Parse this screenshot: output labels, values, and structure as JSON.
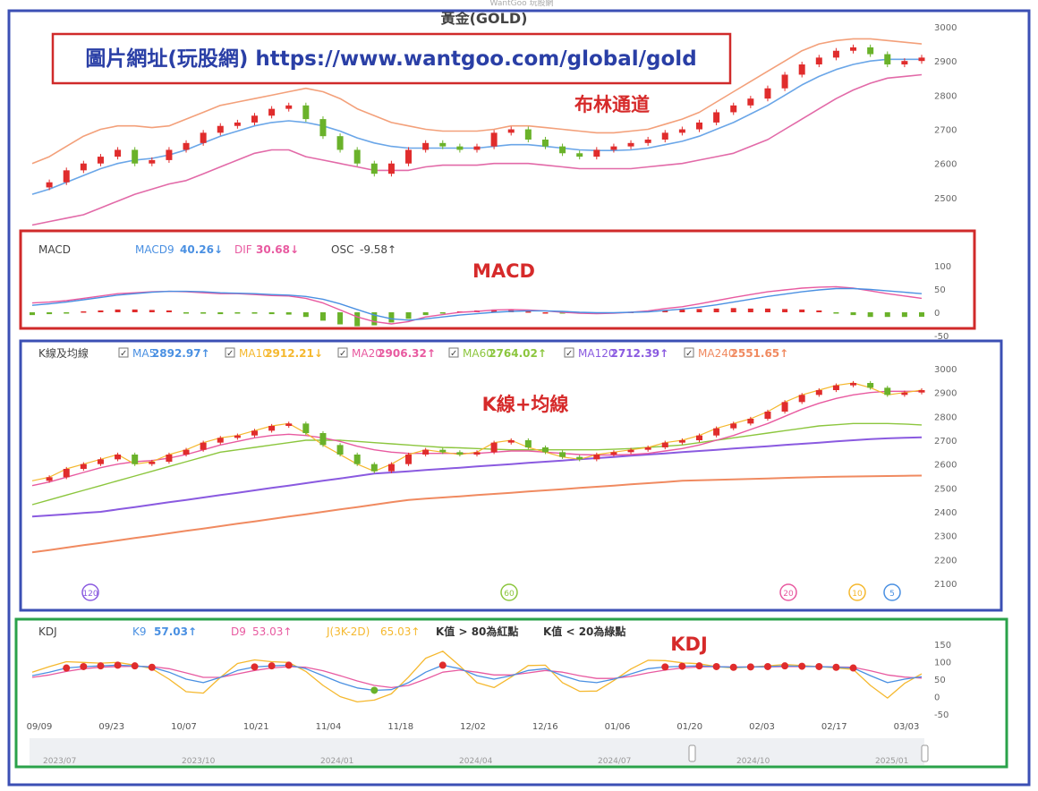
{
  "watermark": "WantGoo 玩股網",
  "title": "黃金(GOLD)",
  "url_box": "圖片網址(玩股網) https://www.wantgoo.com/global/gold",
  "annotations": {
    "bollinger": "布林通道",
    "macd": "MACD",
    "kline": "K線+均線",
    "kdj": "KDJ"
  },
  "colors": {
    "frame_blue": "#3b4fb4",
    "frame_red": "#d02a2a",
    "frame_green": "#2aa24a",
    "up": "#e02c2c",
    "down": "#6ab22a",
    "boll_upper": "#f3a07a",
    "boll_mid": "#6aa6e8",
    "boll_lower": "#e26aa8",
    "ma5": "#4a90e2",
    "ma10": "#f5b82e",
    "ma20": "#e85aa0",
    "ma60": "#8cc63e",
    "ma120": "#8a5ae0",
    "ma240": "#f08a60",
    "annotation": "#d62a2a"
  },
  "chart_data": [
    {
      "type": "line",
      "panel": "bollinger",
      "title": "黃金(GOLD)",
      "ylim": [
        2450,
        3000
      ],
      "y_ticks": [
        3000,
        2900,
        2800,
        2700,
        2600,
        2500
      ],
      "series": [
        {
          "values": [
            2530,
            2545,
            2580,
            2600,
            2620,
            2640,
            2600,
            2610,
            2640,
            2660,
            2690,
            2710,
            2720,
            2740,
            2760,
            2770,
            2730,
            2680,
            2640,
            2600,
            2570,
            2600,
            2640,
            2660,
            2650,
            2640,
            2650,
            2690,
            2700,
            2670,
            2650,
            2630,
            2620,
            2640,
            2650,
            2660,
            2670,
            2690,
            2700,
            2720,
            2750,
            2770,
            2790,
            2820,
            2860,
            2890,
            2910,
            2930,
            2940,
            2920,
            2890,
            2900,
            2910
          ]
        },
        {
          "values": [
            2510,
            2525,
            2545,
            2565,
            2585,
            2600,
            2610,
            2615,
            2625,
            2640,
            2660,
            2680,
            2695,
            2710,
            2720,
            2725,
            2720,
            2710,
            2695,
            2675,
            2660,
            2650,
            2645,
            2645,
            2645,
            2645,
            2645,
            2650,
            2655,
            2655,
            2650,
            2645,
            2640,
            2638,
            2638,
            2640,
            2645,
            2655,
            2665,
            2680,
            2700,
            2720,
            2745,
            2770,
            2800,
            2830,
            2855,
            2875,
            2890,
            2900,
            2905,
            2905,
            2905
          ]
        },
        {
          "values": [
            2600,
            2620,
            2650,
            2680,
            2700,
            2710,
            2710,
            2705,
            2710,
            2730,
            2750,
            2770,
            2780,
            2790,
            2800,
            2810,
            2820,
            2810,
            2790,
            2760,
            2740,
            2720,
            2710,
            2700,
            2695,
            2695,
            2695,
            2700,
            2710,
            2710,
            2705,
            2700,
            2695,
            2690,
            2690,
            2695,
            2700,
            2715,
            2730,
            2750,
            2780,
            2810,
            2840,
            2870,
            2900,
            2930,
            2950,
            2960,
            2965,
            2965,
            2960,
            2955,
            2950
          ]
        },
        {
          "values": [
            2420,
            2430,
            2440,
            2450,
            2470,
            2490,
            2510,
            2525,
            2540,
            2550,
            2570,
            2590,
            2610,
            2630,
            2640,
            2640,
            2620,
            2610,
            2600,
            2590,
            2580,
            2580,
            2580,
            2590,
            2595,
            2595,
            2595,
            2600,
            2600,
            2600,
            2595,
            2590,
            2585,
            2585,
            2585,
            2585,
            2590,
            2595,
            2600,
            2610,
            2620,
            2630,
            2650,
            2670,
            2700,
            2730,
            2760,
            2790,
            2815,
            2835,
            2850,
            2855,
            2860
          ]
        }
      ]
    },
    {
      "type": "bar",
      "panel": "macd",
      "legend_title": "MACD",
      "legend": [
        {
          "name": "MACD9",
          "value": "40.26↓"
        },
        {
          "name": "DIF",
          "value": "30.68↓"
        },
        {
          "name": "OSC",
          "value": "-9.58↑"
        }
      ],
      "ylim": [
        -50,
        100
      ],
      "y_ticks": [
        100,
        50,
        0,
        -50
      ],
      "series": [
        {
          "values": [
            20,
            22,
            25,
            30,
            35,
            40,
            42,
            44,
            45,
            44,
            42,
            40,
            40,
            38,
            36,
            35,
            30,
            20,
            5,
            -10,
            -20,
            -25,
            -20,
            -10,
            -5,
            0,
            2,
            5,
            6,
            5,
            3,
            0,
            -2,
            -3,
            -2,
            0,
            3,
            8,
            12,
            18,
            25,
            32,
            38,
            44,
            48,
            52,
            54,
            55,
            52,
            46,
            40,
            35,
            30
          ]
        },
        {
          "values": [
            15,
            18,
            22,
            27,
            32,
            37,
            40,
            43,
            45,
            45,
            44,
            42,
            41,
            40,
            38,
            37,
            34,
            28,
            18,
            6,
            -6,
            -14,
            -17,
            -14,
            -10,
            -6,
            -3,
            0,
            2,
            3,
            3,
            2,
            0,
            -1,
            -1,
            0,
            1,
            4,
            7,
            11,
            16,
            22,
            28,
            34,
            39,
            44,
            48,
            51,
            51,
            49,
            46,
            43,
            40
          ]
        },
        {
          "values": [
            -6,
            -4,
            -2,
            2,
            4,
            6,
            6,
            5,
            4,
            -2,
            -3,
            -4,
            -2,
            -3,
            -4,
            -5,
            -10,
            -18,
            -26,
            -30,
            -28,
            -22,
            -14,
            -6,
            -2,
            2,
            4,
            6,
            5,
            2,
            0,
            -2,
            -3,
            -2,
            -1,
            1,
            3,
            5,
            6,
            7,
            8,
            9,
            8,
            8,
            7,
            6,
            4,
            -2,
            -6,
            -10,
            -10,
            -10,
            -9.58
          ]
        }
      ]
    },
    {
      "type": "line",
      "panel": "kline",
      "legend_title": "K線及均線",
      "legend": [
        {
          "name": "MA5",
          "value": "2892.97↑"
        },
        {
          "name": "MA10",
          "value": "2912.21↓"
        },
        {
          "name": "MA20",
          "value": "2906.32↑"
        },
        {
          "name": "MA60",
          "value": "2764.02↑"
        },
        {
          "name": "MA120",
          "value": "2712.39↑"
        },
        {
          "name": "MA240",
          "value": "2551.65↑"
        }
      ],
      "ylim": [
        2100,
        3000
      ],
      "y_ticks": [
        3000,
        2900,
        2800,
        2700,
        2600,
        2500,
        2400,
        2300,
        2200,
        2100
      ],
      "markers": [
        "120",
        "60",
        "20",
        "10",
        "5"
      ],
      "series": [
        {
          "name": "MA60",
          "values": [
            2430,
            2450,
            2470,
            2490,
            2510,
            2530,
            2550,
            2570,
            2590,
            2610,
            2630,
            2650,
            2660,
            2670,
            2680,
            2690,
            2700,
            2700,
            2700,
            2695,
            2690,
            2685,
            2680,
            2675,
            2670,
            2668,
            2665,
            2662,
            2660,
            2660,
            2660,
            2660,
            2660,
            2660,
            2662,
            2665,
            2670,
            2675,
            2680,
            2690,
            2700,
            2710,
            2720,
            2730,
            2740,
            2750,
            2760,
            2765,
            2770,
            2770,
            2770,
            2768,
            2764
          ]
        },
        {
          "name": "MA120",
          "values": [
            2380,
            2385,
            2390,
            2395,
            2400,
            2410,
            2420,
            2430,
            2440,
            2450,
            2460,
            2470,
            2480,
            2490,
            2500,
            2510,
            2520,
            2530,
            2540,
            2550,
            2560,
            2565,
            2570,
            2575,
            2580,
            2585,
            2590,
            2595,
            2600,
            2605,
            2610,
            2615,
            2620,
            2625,
            2630,
            2635,
            2640,
            2645,
            2650,
            2655,
            2660,
            2665,
            2670,
            2675,
            2680,
            2685,
            2690,
            2695,
            2700,
            2705,
            2708,
            2710,
            2712
          ]
        },
        {
          "name": "MA240",
          "values": [
            2230,
            2240,
            2250,
            2260,
            2270,
            2280,
            2290,
            2300,
            2310,
            2320,
            2330,
            2340,
            2350,
            2360,
            2370,
            2380,
            2390,
            2400,
            2410,
            2420,
            2430,
            2440,
            2450,
            2455,
            2460,
            2465,
            2470,
            2475,
            2480,
            2485,
            2490,
            2495,
            2500,
            2505,
            2510,
            2515,
            2520,
            2525,
            2530,
            2532,
            2534,
            2536,
            2538,
            2540,
            2542,
            2544,
            2546,
            2547,
            2548,
            2549,
            2550,
            2551,
            2552
          ]
        }
      ]
    },
    {
      "type": "line",
      "panel": "kdj",
      "legend_title": "KDJ",
      "legend": [
        {
          "name": "K9",
          "value": "57.03↑"
        },
        {
          "name": "D9",
          "value": "53.03↑"
        },
        {
          "name": "J(3K-2D)",
          "value": "65.03↑"
        }
      ],
      "notes": [
        "K值 > 80為紅點",
        "K值 < 20為綠點"
      ],
      "ylim": [
        -50,
        150
      ],
      "y_ticks": [
        150,
        100,
        50,
        0,
        -50
      ],
      "x_ticks": [
        "09/09",
        "09/23",
        "10/07",
        "10/21",
        "11/04",
        "11/18",
        "12/02",
        "12/16",
        "01/06",
        "01/20",
        "02/03",
        "02/17",
        "03/03"
      ],
      "scroller_ticks": [
        "2023/07",
        "2023/10",
        "2024/01",
        "2024/04",
        "2024/07",
        "2024/10",
        "2025/01"
      ],
      "series": [
        {
          "name": "K9",
          "values": [
            60,
            70,
            82,
            86,
            88,
            90,
            88,
            84,
            70,
            50,
            40,
            55,
            75,
            85,
            88,
            90,
            80,
            60,
            40,
            25,
            18,
            20,
            40,
            70,
            90,
            80,
            60,
            50,
            60,
            75,
            80,
            60,
            45,
            40,
            50,
            65,
            80,
            85,
            87,
            88,
            86,
            84,
            85,
            86,
            88,
            87,
            86,
            84,
            82,
            60,
            40,
            50,
            57
          ]
        },
        {
          "name": "D9",
          "values": [
            55,
            62,
            72,
            80,
            84,
            86,
            87,
            86,
            80,
            68,
            55,
            55,
            65,
            75,
            82,
            86,
            84,
            74,
            60,
            45,
            32,
            26,
            32,
            50,
            70,
            76,
            70,
            62,
            62,
            68,
            75,
            70,
            60,
            52,
            52,
            58,
            68,
            76,
            82,
            85,
            86,
            85,
            85,
            85,
            86,
            86,
            86,
            85,
            84,
            74,
            62,
            56,
            53
          ]
        },
        {
          "name": "J(3K-2D)",
          "values": [
            70,
            86,
            100,
            98,
            96,
            98,
            90,
            80,
            50,
            14,
            10,
            55,
            95,
            105,
            100,
            98,
            72,
            32,
            0,
            -15,
            -10,
            8,
            56,
            110,
            130,
            88,
            40,
            26,
            56,
            89,
            90,
            40,
            15,
            16,
            46,
            79,
            104,
            103,
            97,
            94,
            86,
            82,
            85,
            88,
            92,
            89,
            86,
            82,
            78,
            32,
            -4,
            38,
            65
          ]
        }
      ]
    }
  ]
}
